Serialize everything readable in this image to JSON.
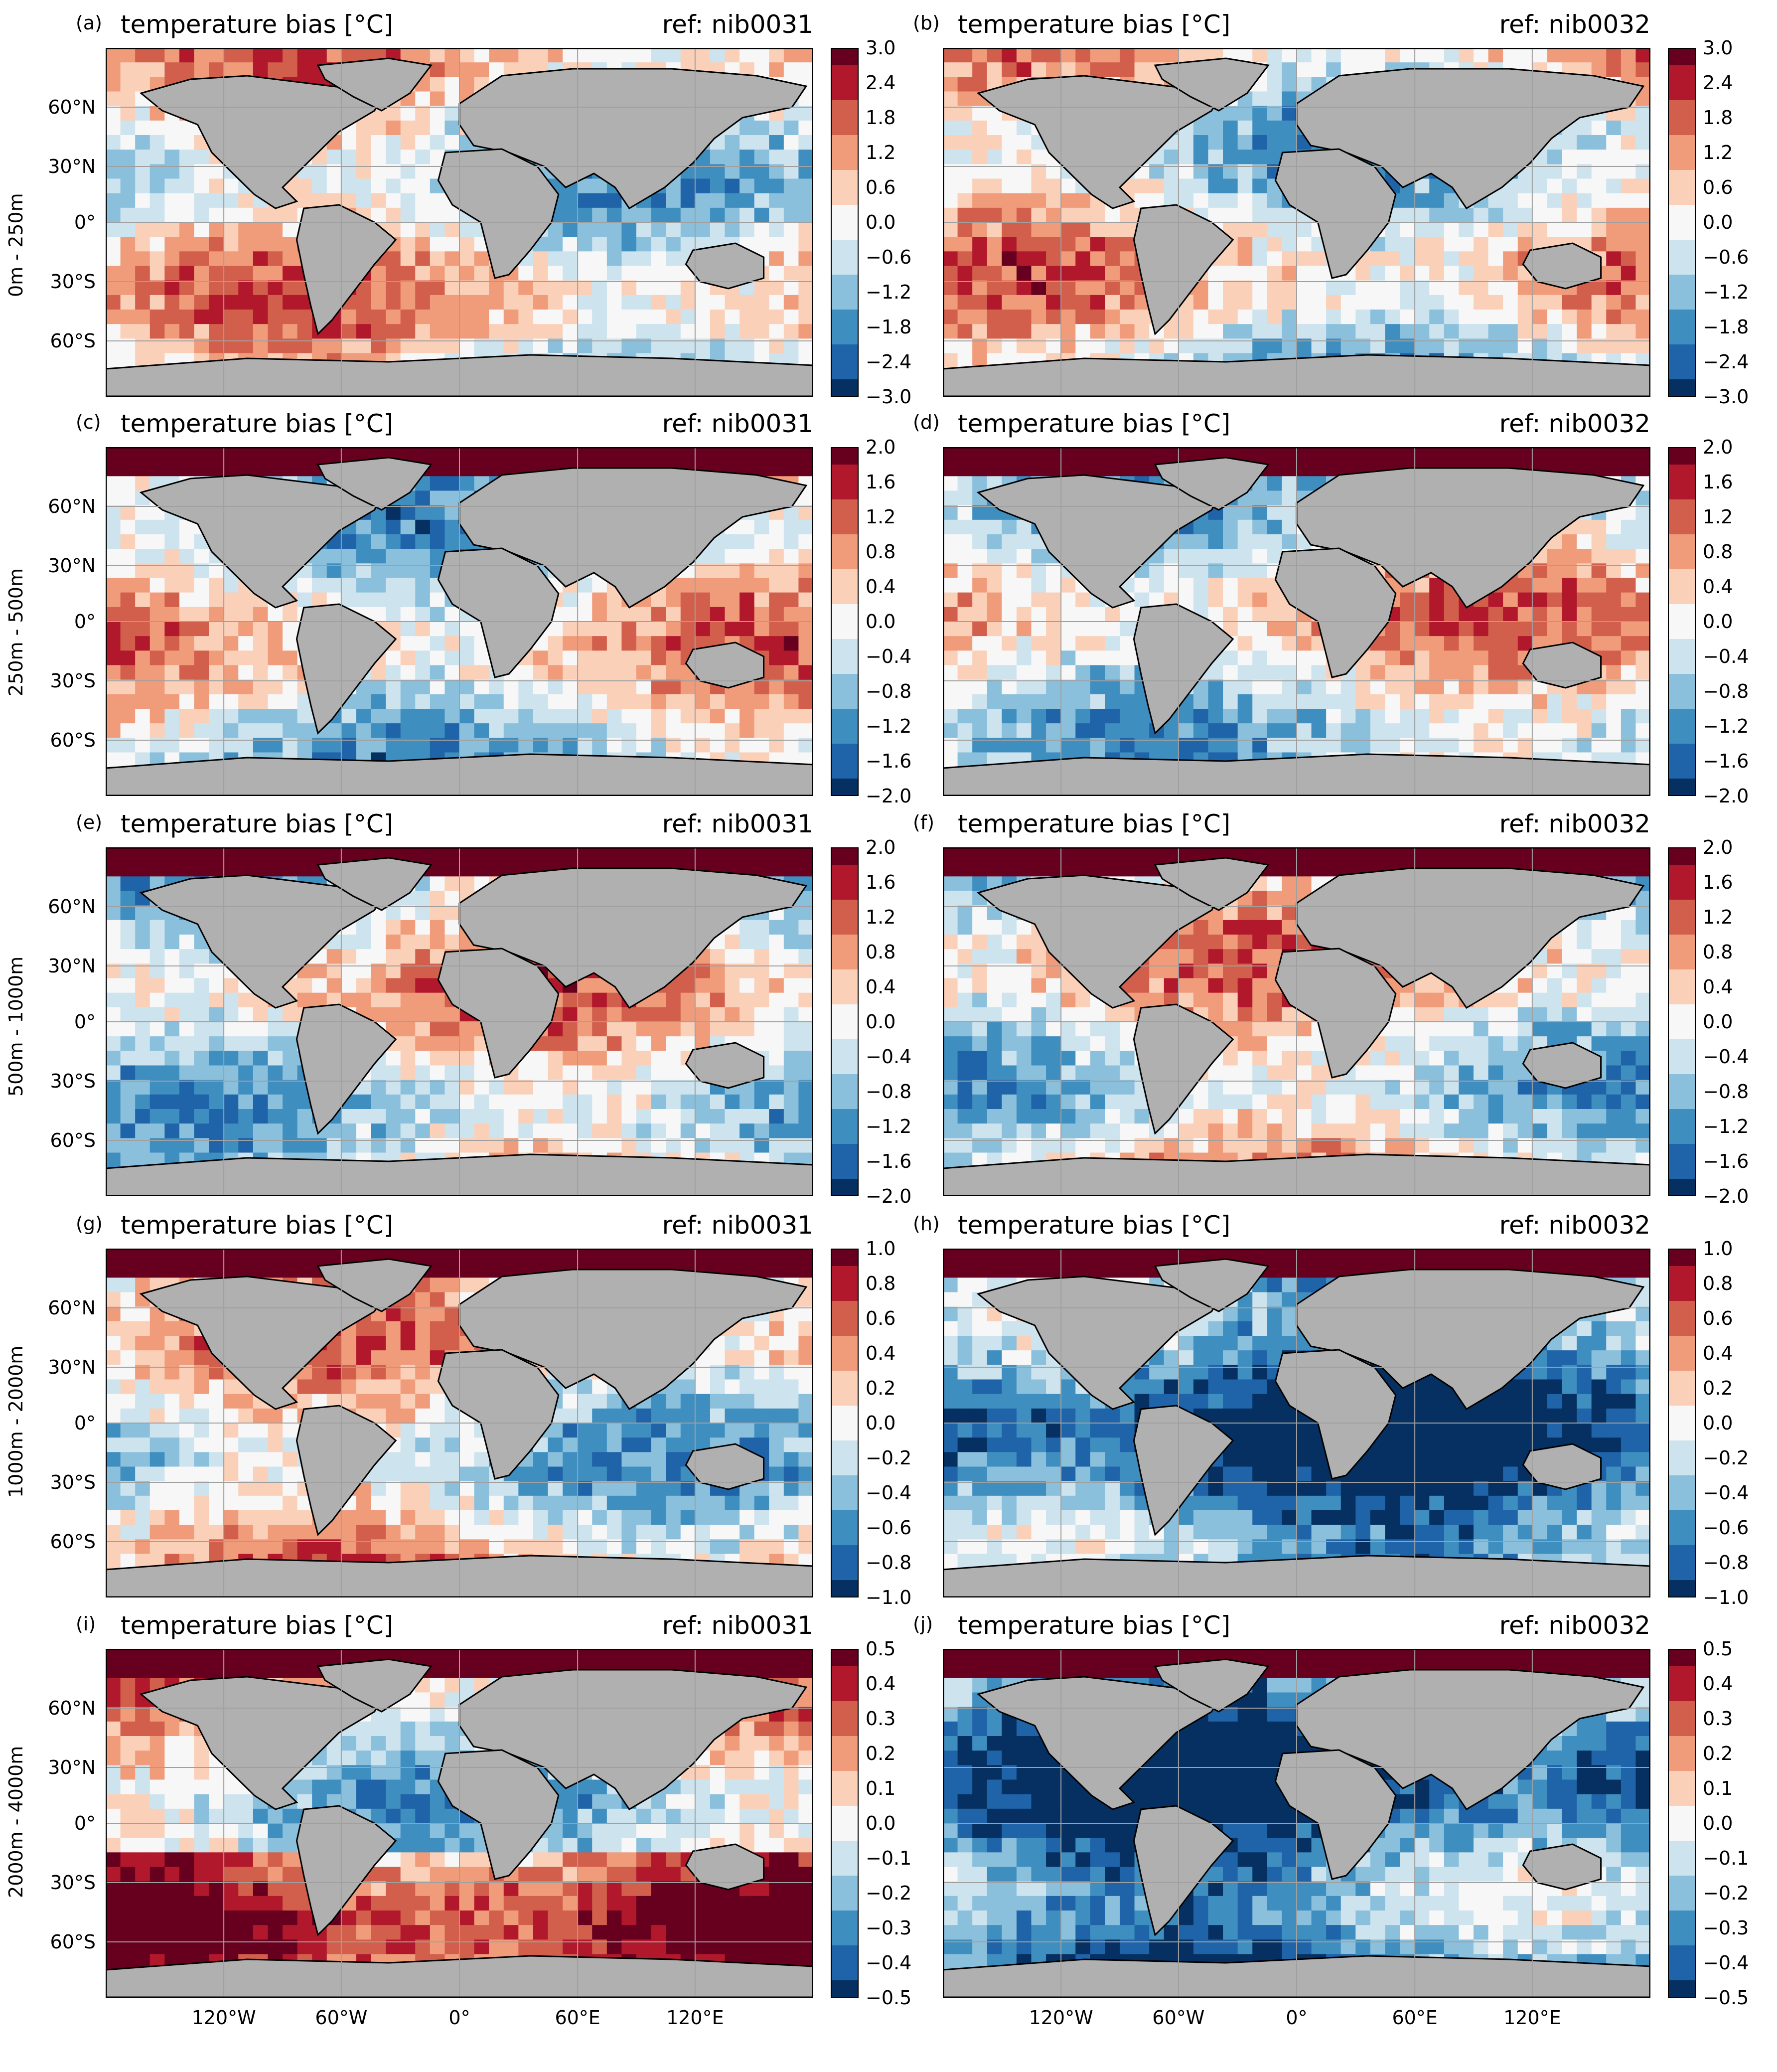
{
  "figure": {
    "panels": [
      {
        "letter": "(a)",
        "title": "temperature bias [°C]",
        "ref": "ref: nib0031"
      },
      {
        "letter": "(b)",
        "title": "temperature bias [°C]",
        "ref": "ref: nib0032"
      },
      {
        "letter": "(c)",
        "title": "temperature bias [°C]",
        "ref": "ref: nib0031"
      },
      {
        "letter": "(d)",
        "title": "temperature bias [°C]",
        "ref": "ref: nib0032"
      },
      {
        "letter": "(e)",
        "title": "temperature bias [°C]",
        "ref": "ref: nib0031"
      },
      {
        "letter": "(f)",
        "title": "temperature bias [°C]",
        "ref": "ref: nib0032"
      },
      {
        "letter": "(g)",
        "title": "temperature bias [°C]",
        "ref": "ref: nib0031"
      },
      {
        "letter": "(h)",
        "title": "temperature bias [°C]",
        "ref": "ref: nib0032"
      },
      {
        "letter": "(i)",
        "title": "temperature bias [°C]",
        "ref": "ref: nib0031"
      },
      {
        "letter": "(j)",
        "title": "temperature bias [°C]",
        "ref": "ref: nib0032"
      }
    ],
    "rows": [
      {
        "depth_label": "0m - 250m",
        "cbar_ticks": [
          "3.0",
          "2.4",
          "1.8",
          "1.2",
          "0.6",
          "0.0",
          "−0.6",
          "−1.2",
          "−1.8",
          "−2.4",
          "−3.0"
        ]
      },
      {
        "depth_label": "250m - 500m",
        "cbar_ticks": [
          "2.0",
          "1.6",
          "1.2",
          "0.8",
          "0.4",
          "0.0",
          "−0.4",
          "−0.8",
          "−1.2",
          "−1.6",
          "−2.0"
        ]
      },
      {
        "depth_label": "500m - 1000m",
        "cbar_ticks": [
          "2.0",
          "1.6",
          "1.2",
          "0.8",
          "0.4",
          "0.0",
          "−0.4",
          "−0.8",
          "−1.2",
          "−1.6",
          "−2.0"
        ]
      },
      {
        "depth_label": "1000m - 2000m",
        "cbar_ticks": [
          "1.0",
          "0.8",
          "0.6",
          "0.4",
          "0.2",
          "0.0",
          "−0.2",
          "−0.4",
          "−0.6",
          "−0.8",
          "−1.0"
        ]
      },
      {
        "depth_label": "2000m - 4000m",
        "cbar_ticks": [
          "0.5",
          "0.4",
          "0.3",
          "0.2",
          "0.1",
          "0.0",
          "−0.1",
          "−0.2",
          "−0.3",
          "−0.4",
          "−0.5"
        ]
      }
    ],
    "lat_labels": [
      "60°N",
      "30°N",
      "0°",
      "30°S",
      "60°S"
    ],
    "lon_labels": [
      "120°W",
      "60°W",
      "0°",
      "60°E",
      "120°E"
    ],
    "colormap": [
      "#053061",
      "#1f63a8",
      "#3f8ec0",
      "#8bc0dd",
      "#cde3ee",
      "#f7f7f7",
      "#fbd0b9",
      "#f09c7b",
      "#d15f4c",
      "#b2182b",
      "#67001f"
    ],
    "land_color": "#b0b0b0",
    "ice_color": "#ffffff"
  }
}
